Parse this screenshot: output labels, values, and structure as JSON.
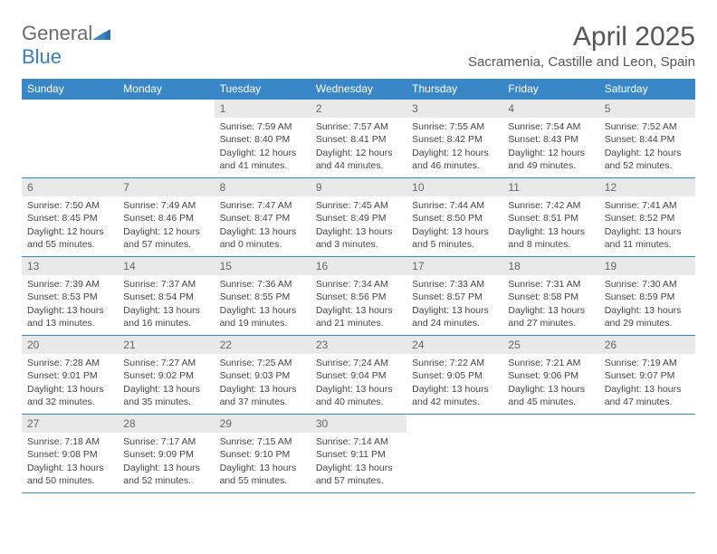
{
  "brand": {
    "part1": "General",
    "part2": "Blue"
  },
  "title": "April 2025",
  "location": "Sacramenia, Castille and Leon, Spain",
  "colors": {
    "header_bg": "#3a87c7",
    "header_text": "#ffffff",
    "daynum_bg": "#e9e9e9",
    "border": "#3a87c7",
    "logo_gray": "#6b6b6b",
    "logo_blue": "#3a7fc4"
  },
  "weekdays": [
    "Sunday",
    "Monday",
    "Tuesday",
    "Wednesday",
    "Thursday",
    "Friday",
    "Saturday"
  ],
  "weeks": [
    [
      {
        "n": "",
        "sr": "",
        "ss": "",
        "dl": ""
      },
      {
        "n": "",
        "sr": "",
        "ss": "",
        "dl": ""
      },
      {
        "n": "1",
        "sr": "Sunrise: 7:59 AM",
        "ss": "Sunset: 8:40 PM",
        "dl": "Daylight: 12 hours and 41 minutes."
      },
      {
        "n": "2",
        "sr": "Sunrise: 7:57 AM",
        "ss": "Sunset: 8:41 PM",
        "dl": "Daylight: 12 hours and 44 minutes."
      },
      {
        "n": "3",
        "sr": "Sunrise: 7:55 AM",
        "ss": "Sunset: 8:42 PM",
        "dl": "Daylight: 12 hours and 46 minutes."
      },
      {
        "n": "4",
        "sr": "Sunrise: 7:54 AM",
        "ss": "Sunset: 8:43 PM",
        "dl": "Daylight: 12 hours and 49 minutes."
      },
      {
        "n": "5",
        "sr": "Sunrise: 7:52 AM",
        "ss": "Sunset: 8:44 PM",
        "dl": "Daylight: 12 hours and 52 minutes."
      }
    ],
    [
      {
        "n": "6",
        "sr": "Sunrise: 7:50 AM",
        "ss": "Sunset: 8:45 PM",
        "dl": "Daylight: 12 hours and 55 minutes."
      },
      {
        "n": "7",
        "sr": "Sunrise: 7:49 AM",
        "ss": "Sunset: 8:46 PM",
        "dl": "Daylight: 12 hours and 57 minutes."
      },
      {
        "n": "8",
        "sr": "Sunrise: 7:47 AM",
        "ss": "Sunset: 8:47 PM",
        "dl": "Daylight: 13 hours and 0 minutes."
      },
      {
        "n": "9",
        "sr": "Sunrise: 7:45 AM",
        "ss": "Sunset: 8:49 PM",
        "dl": "Daylight: 13 hours and 3 minutes."
      },
      {
        "n": "10",
        "sr": "Sunrise: 7:44 AM",
        "ss": "Sunset: 8:50 PM",
        "dl": "Daylight: 13 hours and 5 minutes."
      },
      {
        "n": "11",
        "sr": "Sunrise: 7:42 AM",
        "ss": "Sunset: 8:51 PM",
        "dl": "Daylight: 13 hours and 8 minutes."
      },
      {
        "n": "12",
        "sr": "Sunrise: 7:41 AM",
        "ss": "Sunset: 8:52 PM",
        "dl": "Daylight: 13 hours and 11 minutes."
      }
    ],
    [
      {
        "n": "13",
        "sr": "Sunrise: 7:39 AM",
        "ss": "Sunset: 8:53 PM",
        "dl": "Daylight: 13 hours and 13 minutes."
      },
      {
        "n": "14",
        "sr": "Sunrise: 7:37 AM",
        "ss": "Sunset: 8:54 PM",
        "dl": "Daylight: 13 hours and 16 minutes."
      },
      {
        "n": "15",
        "sr": "Sunrise: 7:36 AM",
        "ss": "Sunset: 8:55 PM",
        "dl": "Daylight: 13 hours and 19 minutes."
      },
      {
        "n": "16",
        "sr": "Sunrise: 7:34 AM",
        "ss": "Sunset: 8:56 PM",
        "dl": "Daylight: 13 hours and 21 minutes."
      },
      {
        "n": "17",
        "sr": "Sunrise: 7:33 AM",
        "ss": "Sunset: 8:57 PM",
        "dl": "Daylight: 13 hours and 24 minutes."
      },
      {
        "n": "18",
        "sr": "Sunrise: 7:31 AM",
        "ss": "Sunset: 8:58 PM",
        "dl": "Daylight: 13 hours and 27 minutes."
      },
      {
        "n": "19",
        "sr": "Sunrise: 7:30 AM",
        "ss": "Sunset: 8:59 PM",
        "dl": "Daylight: 13 hours and 29 minutes."
      }
    ],
    [
      {
        "n": "20",
        "sr": "Sunrise: 7:28 AM",
        "ss": "Sunset: 9:01 PM",
        "dl": "Daylight: 13 hours and 32 minutes."
      },
      {
        "n": "21",
        "sr": "Sunrise: 7:27 AM",
        "ss": "Sunset: 9:02 PM",
        "dl": "Daylight: 13 hours and 35 minutes."
      },
      {
        "n": "22",
        "sr": "Sunrise: 7:25 AM",
        "ss": "Sunset: 9:03 PM",
        "dl": "Daylight: 13 hours and 37 minutes."
      },
      {
        "n": "23",
        "sr": "Sunrise: 7:24 AM",
        "ss": "Sunset: 9:04 PM",
        "dl": "Daylight: 13 hours and 40 minutes."
      },
      {
        "n": "24",
        "sr": "Sunrise: 7:22 AM",
        "ss": "Sunset: 9:05 PM",
        "dl": "Daylight: 13 hours and 42 minutes."
      },
      {
        "n": "25",
        "sr": "Sunrise: 7:21 AM",
        "ss": "Sunset: 9:06 PM",
        "dl": "Daylight: 13 hours and 45 minutes."
      },
      {
        "n": "26",
        "sr": "Sunrise: 7:19 AM",
        "ss": "Sunset: 9:07 PM",
        "dl": "Daylight: 13 hours and 47 minutes."
      }
    ],
    [
      {
        "n": "27",
        "sr": "Sunrise: 7:18 AM",
        "ss": "Sunset: 9:08 PM",
        "dl": "Daylight: 13 hours and 50 minutes."
      },
      {
        "n": "28",
        "sr": "Sunrise: 7:17 AM",
        "ss": "Sunset: 9:09 PM",
        "dl": "Daylight: 13 hours and 52 minutes."
      },
      {
        "n": "29",
        "sr": "Sunrise: 7:15 AM",
        "ss": "Sunset: 9:10 PM",
        "dl": "Daylight: 13 hours and 55 minutes."
      },
      {
        "n": "30",
        "sr": "Sunrise: 7:14 AM",
        "ss": "Sunset: 9:11 PM",
        "dl": "Daylight: 13 hours and 57 minutes."
      },
      {
        "n": "",
        "sr": "",
        "ss": "",
        "dl": ""
      },
      {
        "n": "",
        "sr": "",
        "ss": "",
        "dl": ""
      },
      {
        "n": "",
        "sr": "",
        "ss": "",
        "dl": ""
      }
    ]
  ]
}
